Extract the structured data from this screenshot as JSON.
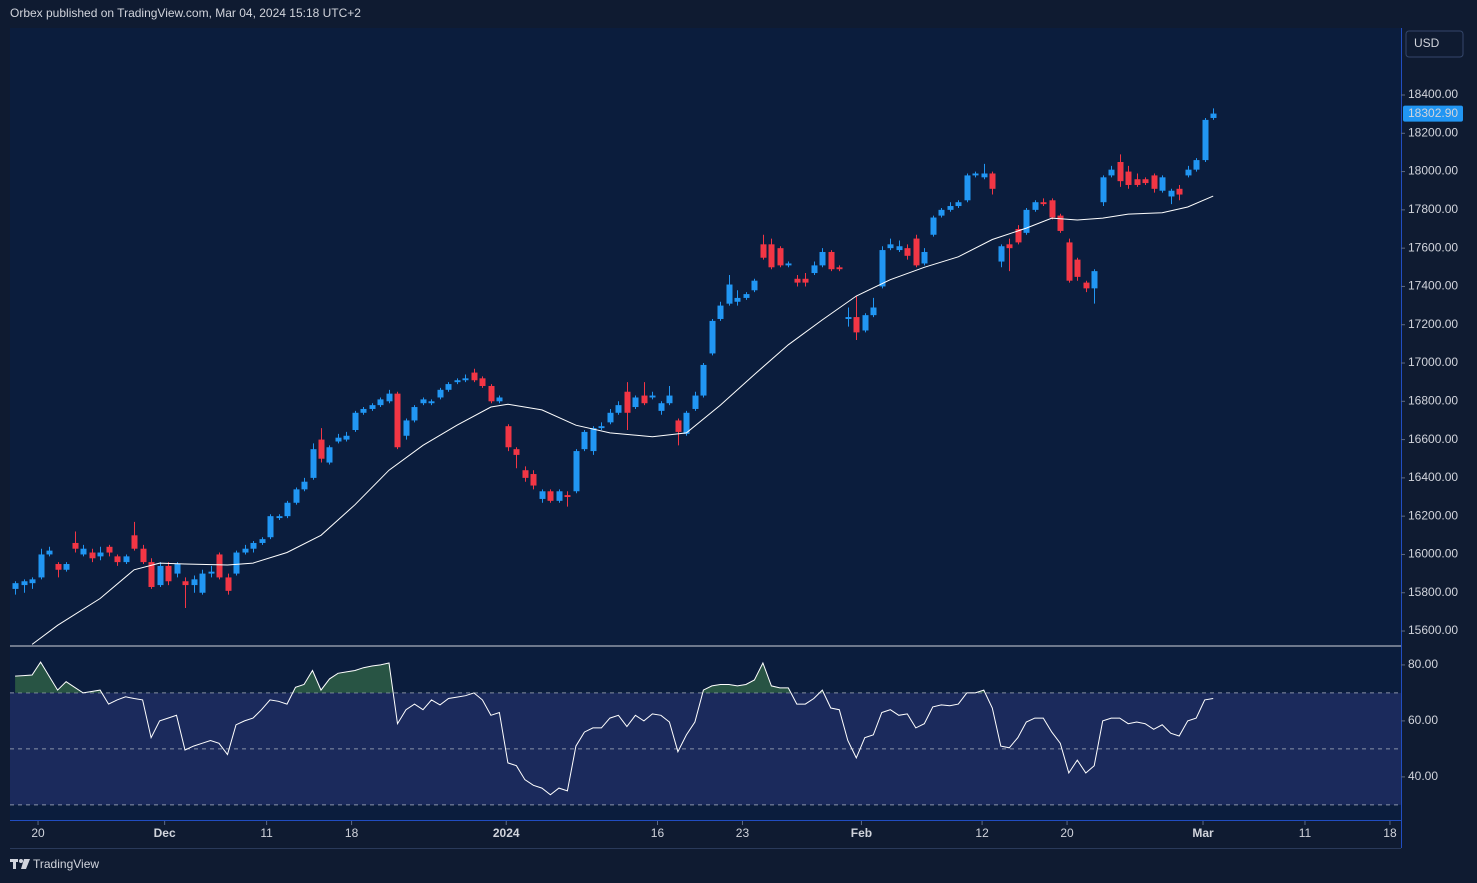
{
  "header": {
    "title": "Orbex published on TradingView.com, Mar 04, 2024 15:18 UTC+2"
  },
  "currency": "USD",
  "footer": {
    "brand": "TradingView"
  },
  "chart_data": [
    {
      "type": "candlestick",
      "up_color": "#2196f3",
      "down_color": "#f23645",
      "xlim": [
        -0.6,
        163.1
      ],
      "ylim": [
        15527,
        18750
      ],
      "yticks": [
        {
          "value": 15600,
          "label": "15600.00"
        },
        {
          "value": 15800,
          "label": "15800.00"
        },
        {
          "value": 16000,
          "label": "16000.00"
        },
        {
          "value": 16200,
          "label": "16200.00"
        },
        {
          "value": 16400,
          "label": "16400.00"
        },
        {
          "value": 16600,
          "label": "16600.00"
        },
        {
          "value": 16800,
          "label": "16800.00"
        },
        {
          "value": 17000,
          "label": "17000.00"
        },
        {
          "value": 17200,
          "label": "17200.00"
        },
        {
          "value": 17400,
          "label": "17400.00"
        },
        {
          "value": 17600,
          "label": "17600.00"
        },
        {
          "value": 17800,
          "label": "17800.00"
        },
        {
          "value": 18000,
          "label": "18000.00"
        },
        {
          "value": 18200,
          "label": "18200.00"
        },
        {
          "value": 18400,
          "label": "18400.00"
        }
      ],
      "last_price": {
        "value": 18302.9,
        "label": "18302.90",
        "color": "#2196f3"
      },
      "ohlc": [
        [
          15820,
          15860,
          15790,
          15850
        ],
        [
          15840,
          15870,
          15800,
          15860
        ],
        [
          15850,
          15880,
          15820,
          15870
        ],
        [
          15880,
          16030,
          15870,
          16000
        ],
        [
          16000,
          16040,
          15990,
          16020
        ],
        [
          15950,
          15960,
          15880,
          15920
        ],
        [
          15920,
          15960,
          15910,
          15950
        ],
        [
          16060,
          16120,
          16010,
          16030
        ],
        [
          16000,
          16050,
          15990,
          16030
        ],
        [
          16010,
          16030,
          15960,
          15980
        ],
        [
          15990,
          16040,
          15970,
          16010
        ],
        [
          16040,
          16050,
          15990,
          16010
        ],
        [
          15990,
          16000,
          15940,
          15960
        ],
        [
          15960,
          16000,
          15950,
          15990
        ],
        [
          16100,
          16170,
          16020,
          16030
        ],
        [
          16030,
          16050,
          15950,
          15960
        ],
        [
          15960,
          15980,
          15820,
          15830
        ],
        [
          15840,
          15960,
          15830,
          15940
        ],
        [
          15940,
          15960,
          15840,
          15860
        ],
        [
          15900,
          15960,
          15880,
          15950
        ],
        [
          15860,
          15880,
          15720,
          15840
        ],
        [
          15840,
          15890,
          15800,
          15870
        ],
        [
          15800,
          15920,
          15790,
          15900
        ],
        [
          15900,
          15940,
          15880,
          15910
        ],
        [
          16000,
          16010,
          15870,
          15880
        ],
        [
          15880,
          15900,
          15790,
          15810
        ],
        [
          15900,
          16020,
          15890,
          16010
        ],
        [
          16010,
          16050,
          16000,
          16030
        ],
        [
          16030,
          16070,
          16010,
          16060
        ],
        [
          16060,
          16090,
          16050,
          16080
        ],
        [
          16090,
          16210,
          16080,
          16200
        ],
        [
          16190,
          16210,
          16180,
          16200
        ],
        [
          16200,
          16280,
          16190,
          16270
        ],
        [
          16270,
          16350,
          16260,
          16340
        ],
        [
          16340,
          16400,
          16330,
          16380
        ],
        [
          16400,
          16580,
          16390,
          16550
        ],
        [
          16600,
          16660,
          16480,
          16500
        ],
        [
          16480,
          16570,
          16470,
          16560
        ],
        [
          16590,
          16630,
          16580,
          16610
        ],
        [
          16600,
          16640,
          16590,
          16620
        ],
        [
          16650,
          16750,
          16640,
          16740
        ],
        [
          16740,
          16770,
          16730,
          16760
        ],
        [
          16760,
          16790,
          16750,
          16780
        ],
        [
          16780,
          16820,
          16770,
          16810
        ],
        [
          16800,
          16860,
          16790,
          16840
        ],
        [
          16840,
          16850,
          16550,
          16560
        ],
        [
          16620,
          16710,
          16600,
          16700
        ],
        [
          16700,
          16780,
          16690,
          16770
        ],
        [
          16790,
          16820,
          16780,
          16810
        ],
        [
          16790,
          16810,
          16780,
          16800
        ],
        [
          16820,
          16870,
          16810,
          16860
        ],
        [
          16860,
          16900,
          16850,
          16890
        ],
        [
          16900,
          16920,
          16890,
          16910
        ],
        [
          16910,
          16940,
          16900,
          16920
        ],
        [
          16950,
          16970,
          16900,
          16910
        ],
        [
          16920,
          16930,
          16870,
          16880
        ],
        [
          16880,
          16890,
          16790,
          16800
        ],
        [
          16800,
          16830,
          16790,
          16820
        ],
        [
          16670,
          16680,
          16540,
          16560
        ],
        [
          16550,
          16560,
          16450,
          16520
        ],
        [
          16440,
          16460,
          16380,
          16400
        ],
        [
          16420,
          16440,
          16340,
          16360
        ],
        [
          16290,
          16340,
          16270,
          16330
        ],
        [
          16330,
          16340,
          16270,
          16280
        ],
        [
          16280,
          16340,
          16270,
          16330
        ],
        [
          16310,
          16330,
          16250,
          16300
        ],
        [
          16330,
          16550,
          16320,
          16540
        ],
        [
          16550,
          16650,
          16540,
          16640
        ],
        [
          16540,
          16670,
          16520,
          16660
        ],
        [
          16660,
          16690,
          16650,
          16670
        ],
        [
          16690,
          16760,
          16680,
          16740
        ],
        [
          16740,
          16800,
          16730,
          16780
        ],
        [
          16850,
          16900,
          16650,
          16740
        ],
        [
          16770,
          16830,
          16760,
          16820
        ],
        [
          16830,
          16900,
          16780,
          16790
        ],
        [
          16820,
          16850,
          16810,
          16830
        ],
        [
          16750,
          16800,
          16730,
          16790
        ],
        [
          16790,
          16880,
          16780,
          16830
        ],
        [
          16700,
          16710,
          16570,
          16640
        ],
        [
          16630,
          16750,
          16620,
          16740
        ],
        [
          16760,
          16850,
          16750,
          16830
        ],
        [
          16830,
          17000,
          16820,
          16990
        ],
        [
          17050,
          17230,
          17040,
          17220
        ],
        [
          17230,
          17320,
          17220,
          17300
        ],
        [
          17310,
          17460,
          17300,
          17410
        ],
        [
          17320,
          17380,
          17300,
          17340
        ],
        [
          17340,
          17370,
          17330,
          17360
        ],
        [
          17380,
          17440,
          17370,
          17430
        ],
        [
          17620,
          17670,
          17540,
          17550
        ],
        [
          17620,
          17650,
          17490,
          17500
        ],
        [
          17600,
          17610,
          17500,
          17510
        ],
        [
          17510,
          17530,
          17500,
          17520
        ],
        [
          17440,
          17460,
          17400,
          17420
        ],
        [
          17440,
          17470,
          17400,
          17420
        ],
        [
          17470,
          17530,
          17460,
          17510
        ],
        [
          17510,
          17600,
          17500,
          17580
        ],
        [
          17580,
          17590,
          17480,
          17490
        ],
        [
          17500,
          17510,
          17480,
          17490
        ],
        [
          17230,
          17290,
          17190,
          17240
        ],
        [
          17240,
          17350,
          17120,
          17160
        ],
        [
          17170,
          17260,
          17160,
          17250
        ],
        [
          17250,
          17340,
          17240,
          17290
        ],
        [
          17400,
          17610,
          17390,
          17590
        ],
        [
          17600,
          17650,
          17590,
          17620
        ],
        [
          17590,
          17640,
          17580,
          17610
        ],
        [
          17600,
          17620,
          17540,
          17560
        ],
        [
          17650,
          17670,
          17500,
          17510
        ],
        [
          17520,
          17600,
          17510,
          17580
        ],
        [
          17670,
          17770,
          17660,
          17760
        ],
        [
          17770,
          17810,
          17760,
          17800
        ],
        [
          17800,
          17840,
          17790,
          17820
        ],
        [
          17820,
          17850,
          17810,
          17840
        ],
        [
          17850,
          17990,
          17840,
          17980
        ],
        [
          17980,
          18000,
          17970,
          17990
        ],
        [
          17970,
          18040,
          17960,
          17990
        ],
        [
          17990,
          18000,
          17880,
          17910
        ],
        [
          17530,
          17620,
          17500,
          17610
        ],
        [
          17620,
          17650,
          17480,
          17600
        ],
        [
          17700,
          17720,
          17620,
          17630
        ],
        [
          17680,
          17810,
          17670,
          17800
        ],
        [
          17800,
          17850,
          17790,
          17840
        ],
        [
          17840,
          17860,
          17820,
          17830
        ],
        [
          17850,
          17860,
          17750,
          17760
        ],
        [
          17770,
          17780,
          17680,
          17690
        ],
        [
          17630,
          17650,
          17420,
          17430
        ],
        [
          17540,
          17550,
          17430,
          17450
        ],
        [
          17420,
          17430,
          17370,
          17390
        ],
        [
          17390,
          17490,
          17310,
          17480
        ],
        [
          17840,
          17980,
          17820,
          17970
        ],
        [
          17980,
          18030,
          17970,
          18010
        ],
        [
          18050,
          18090,
          17920,
          17950
        ],
        [
          18000,
          18030,
          17910,
          17930
        ],
        [
          17960,
          17990,
          17920,
          17930
        ],
        [
          17960,
          17970,
          17930,
          17940
        ],
        [
          17980,
          17990,
          17890,
          17910
        ],
        [
          17900,
          17980,
          17890,
          17970
        ],
        [
          17870,
          17910,
          17830,
          17900
        ],
        [
          17910,
          17930,
          17850,
          17880
        ],
        [
          17980,
          18030,
          17970,
          18010
        ],
        [
          18010,
          18070,
          18000,
          18060
        ],
        [
          18060,
          18280,
          18050,
          18270
        ],
        [
          18280,
          18330,
          18270,
          18303
        ]
      ],
      "ma": {
        "color": "#ffffff",
        "x": [
          2,
          5,
          10,
          14,
          17,
          20,
          25,
          28,
          32,
          36,
          40,
          44,
          48,
          52,
          56,
          58,
          62,
          66,
          70,
          75,
          79,
          83,
          87,
          91,
          95,
          99,
          103,
          107,
          111,
          115,
          119,
          122,
          125,
          128,
          131,
          135,
          138,
          141
        ],
        "values": [
          15530,
          15630,
          15770,
          15920,
          15955,
          15950,
          15945,
          15955,
          16010,
          16100,
          16260,
          16440,
          16570,
          16675,
          16770,
          16785,
          16755,
          16675,
          16635,
          16615,
          16635,
          16780,
          16940,
          17095,
          17225,
          17350,
          17435,
          17500,
          17555,
          17645,
          17705,
          17757,
          17747,
          17757,
          17778,
          17785,
          17815,
          17872
        ]
      }
    },
    {
      "type": "line",
      "color": "#ffffff",
      "overbought_fill": "#3c7a4a",
      "band_color": "#1b2a5c",
      "xlim": [
        -0.6,
        163.1
      ],
      "ylim": [
        24.6,
        86.4
      ],
      "levels": [
        70,
        50,
        30
      ],
      "yticks": [
        {
          "value": 40,
          "label": "40.00"
        },
        {
          "value": 60,
          "label": "60.00"
        },
        {
          "value": 80,
          "label": "80.00"
        }
      ],
      "xticks": [
        {
          "value": 2.7,
          "label": "20"
        },
        {
          "value": 17.6,
          "label": "Dec"
        },
        {
          "value": 29.6,
          "label": "11"
        },
        {
          "value": 39.6,
          "label": "18"
        },
        {
          "value": 57.8,
          "label": "2024"
        },
        {
          "value": 75.6,
          "label": "16"
        },
        {
          "value": 85.6,
          "label": "23"
        },
        {
          "value": 99.6,
          "label": "Feb"
        },
        {
          "value": 113.8,
          "label": "12"
        },
        {
          "value": 123.8,
          "label": "20"
        },
        {
          "value": 139.8,
          "label": "Mar"
        },
        {
          "value": 151.8,
          "label": "11"
        },
        {
          "value": 161.8,
          "label": "18"
        }
      ],
      "values": [
        76,
        76.2,
        76.4,
        81,
        76,
        71,
        74,
        72,
        70,
        70.5,
        71,
        66,
        67.5,
        68.6,
        68,
        67.5,
        54,
        60,
        61,
        62,
        49.6,
        51,
        52,
        53,
        52,
        48,
        58.6,
        60,
        61,
        64,
        67.5,
        67,
        66,
        72,
        73,
        78,
        71,
        75,
        77,
        77.5,
        78,
        79,
        79.6,
        80,
        80.7,
        59,
        64,
        66,
        64,
        67.5,
        65.7,
        68,
        68.5,
        69,
        70,
        67.5,
        62,
        63,
        45,
        44,
        39,
        37,
        36,
        33.6,
        36,
        35,
        51,
        56,
        57.5,
        57.5,
        61,
        62,
        58,
        62,
        60,
        62.5,
        62,
        59.6,
        49,
        55,
        59.6,
        71,
        72.5,
        73,
        73,
        72.5,
        73,
        74.6,
        80.7,
        72.5,
        71.8,
        71.8,
        66,
        66,
        68,
        71,
        64.6,
        64,
        53,
        46.8,
        54,
        55,
        63,
        64,
        62,
        62.5,
        57.5,
        59,
        65,
        65.7,
        65.4,
        66,
        70,
        70,
        71,
        64.6,
        51,
        50.4,
        54,
        59.6,
        61,
        61,
        56,
        52,
        41.4,
        46,
        41.4,
        44,
        60,
        61,
        61,
        59,
        59.6,
        59,
        57,
        58.6,
        55.6,
        54.6,
        60,
        61,
        67.5,
        68
      ]
    }
  ]
}
